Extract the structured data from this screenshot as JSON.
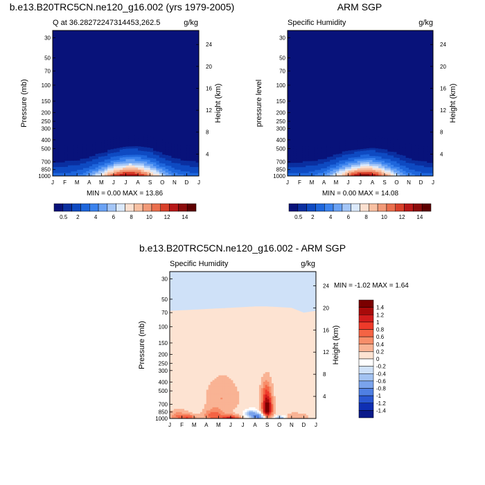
{
  "figure": {
    "title_bottom": "b.e13.B20TRC5CN.ne120_g16.002 - ARM SGP"
  },
  "chart_data": [
    {
      "id": "model",
      "type": "heatmap",
      "title": "b.e13.B20TRC5CN.ne120_g16.002 (yrs 1979-2005)",
      "left_label": "Q at 36.28272247314453,262.5",
      "right_label": "g/kg",
      "ylabel": "Pressure (mb)",
      "ylabel_right": "Height (km)",
      "x_ticks": [
        "J",
        "F",
        "M",
        "A",
        "M",
        "J",
        "J",
        "A",
        "S",
        "O",
        "N",
        "D",
        "J"
      ],
      "p_ticks": [
        30,
        50,
        70,
        100,
        150,
        200,
        250,
        300,
        400,
        500,
        700,
        850,
        1000
      ],
      "h_ticks": [
        4,
        8,
        12,
        16,
        20,
        24
      ],
      "ylim": [
        1000,
        25
      ],
      "stats": "MIN =   0.00 MAX =  13.86",
      "min": 0.0,
      "max": 13.86,
      "top_edge_mb": [
        470,
        465,
        460,
        440,
        410,
        375,
        345,
        340,
        360,
        400,
        440,
        465,
        470
      ],
      "peak_month": 6.3,
      "peak_spread": 2.6
    },
    {
      "id": "obs",
      "type": "heatmap",
      "title": "ARM SGP",
      "left_label": "Specific Humidity",
      "right_label": "g/kg",
      "ylabel": "pressure level",
      "ylabel_right": "Height (km)",
      "x_ticks": [
        "J",
        "F",
        "M",
        "A",
        "M",
        "J",
        "J",
        "A",
        "S",
        "O",
        "N",
        "D",
        "J"
      ],
      "p_ticks": [
        30,
        50,
        70,
        100,
        150,
        200,
        250,
        300,
        400,
        500,
        700,
        850,
        1000
      ],
      "h_ticks": [
        4,
        8,
        12,
        16,
        20,
        24
      ],
      "ylim": [
        1000,
        25
      ],
      "stats": "MIN =   0.00 MAX =  14.08",
      "min": 0.0,
      "max": 14.08,
      "top_edge_mb": [
        480,
        475,
        470,
        460,
        430,
        400,
        380,
        360,
        380,
        395,
        440,
        470,
        480
      ],
      "peak_month": 6.4,
      "peak_spread": 2.5
    },
    {
      "id": "diff",
      "type": "heatmap",
      "title": "b.e13.B20TRC5CN.ne120_g16.002 - ARM SGP",
      "left_label": "Specific Humidity",
      "right_label": "g/kg",
      "ylabel": "Pressure (mb)",
      "ylabel_right": "Height (km)",
      "x_ticks": [
        "J",
        "F",
        "M",
        "A",
        "M",
        "J",
        "J",
        "A",
        "S",
        "O",
        "N",
        "D",
        "J"
      ],
      "p_ticks": [
        30,
        50,
        70,
        100,
        150,
        200,
        250,
        300,
        400,
        500,
        700,
        850,
        1000
      ],
      "h_ticks": [
        4,
        8,
        12,
        16,
        20,
        24
      ],
      "ylim": [
        1000,
        25
      ],
      "stats": "MIN = -1.02 MAX =  1.64",
      "min": -1.02,
      "max": 1.64,
      "zero_line_mb": [
        67,
        66,
        65,
        64,
        63,
        62,
        61,
        60,
        60,
        61,
        62,
        70,
        67
      ]
    }
  ],
  "colorbar_abs": {
    "labels": [
      "0.5",
      "2",
      "4",
      "6",
      "8",
      "10",
      "12",
      "14"
    ],
    "colors": [
      "#08127a",
      "#0a2fa0",
      "#0e4ac2",
      "#1e66dc",
      "#3b83ee",
      "#6aa2f4",
      "#a4c6f7",
      "#dbe9fb",
      "#fbe0d0",
      "#f8c0a2",
      "#f29a78",
      "#ea6f4d",
      "#d9402a",
      "#b81818",
      "#8c0b0b",
      "#5e0000"
    ]
  },
  "colorbar_diff": {
    "labels": [
      "1.4",
      "1.2",
      "1",
      "0.8",
      "0.6",
      "0.4",
      "0.2",
      "0",
      "-0.2",
      "-0.4",
      "-0.6",
      "-0.8",
      "-1",
      "-1.2",
      "-1.4"
    ],
    "colors": [
      "#7a0000",
      "#a80a0a",
      "#d21c1c",
      "#ee3a2a",
      "#f46444",
      "#f78e6a",
      "#f9b394",
      "#fde3d2",
      "#ffffff",
      "#cfe1f8",
      "#a3c3f2",
      "#7aa3ec",
      "#4f7fe3",
      "#2a57d2",
      "#0f2fb3",
      "#0a1a8a"
    ]
  }
}
